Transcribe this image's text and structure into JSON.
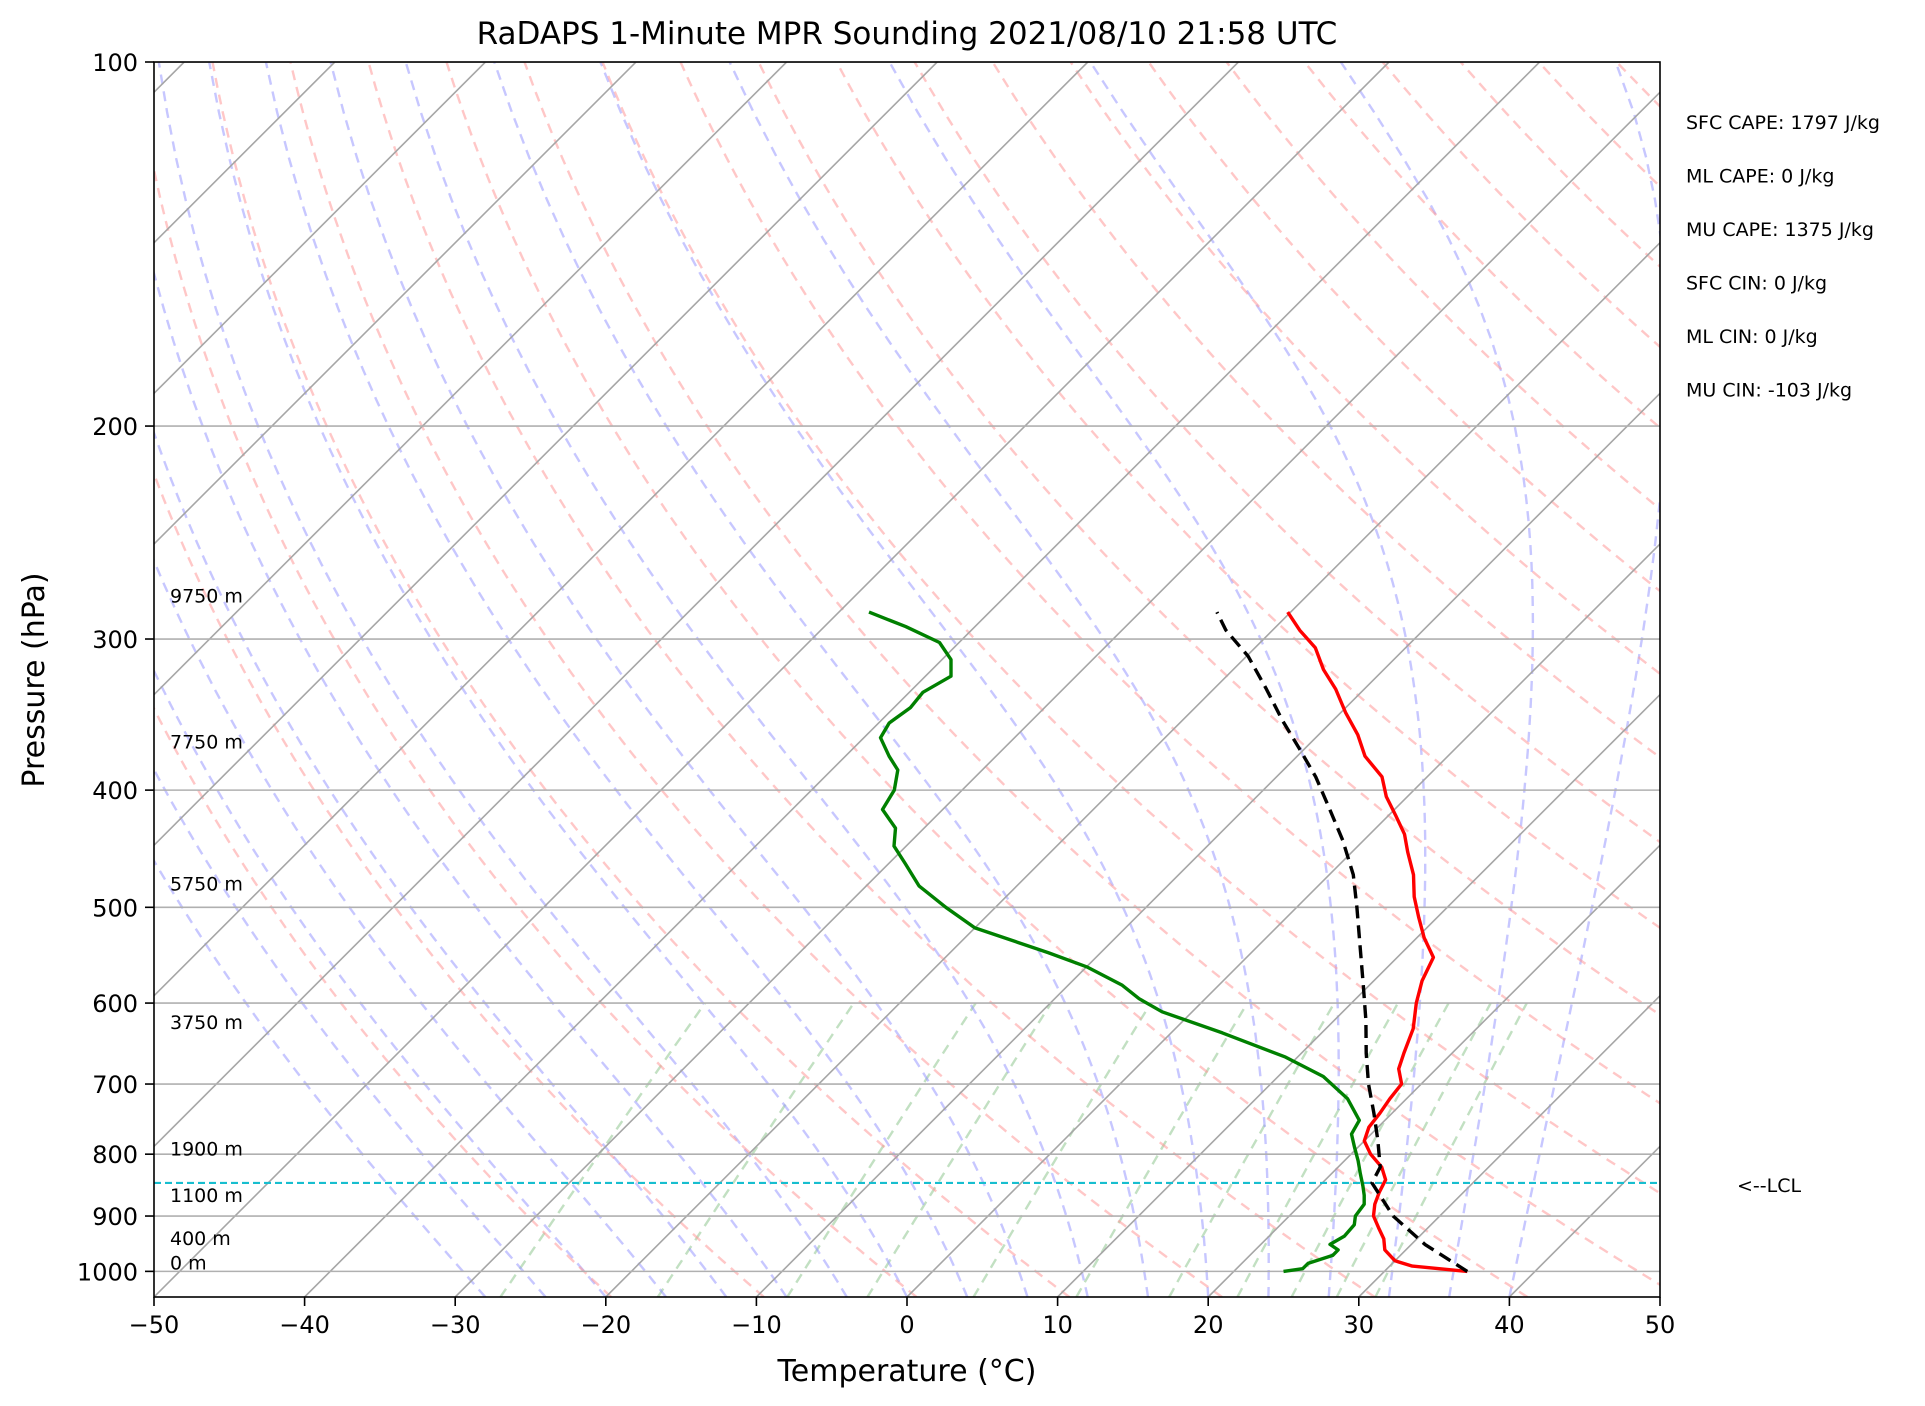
{
  "chart_data": {
    "type": "line",
    "subtype": "skew-T log-P sounding",
    "title": "RaDAPS 1-Minute MPR Sounding 2021/08/10 21:58 UTC",
    "xlabel": "Temperature (°C)",
    "ylabel": "Pressure (hPa)",
    "xlim": [
      -50,
      50
    ],
    "ylim": [
      1050,
      100
    ],
    "y_scale": "log",
    "grid": true,
    "x_ticks": [
      -50,
      -40,
      -30,
      -20,
      -10,
      0,
      10,
      20,
      30,
      40,
      50
    ],
    "x_tick_labels": [
      "−50",
      "−40",
      "−30",
      "−20",
      "−10",
      "0",
      "10",
      "20",
      "30",
      "40",
      "50"
    ],
    "y_ticks": [
      1000,
      900,
      800,
      700,
      600,
      500,
      400,
      300,
      200,
      100
    ],
    "y_tick_labels": [
      "1000",
      "900",
      "800",
      "700",
      "600",
      "500",
      "400",
      "300",
      "200",
      "100"
    ],
    "series": [
      {
        "role": "temperature",
        "color": "#ff0000",
        "style": "solid",
        "points": [
          [
            35.5,
            1000
          ],
          [
            31.5,
            990
          ],
          [
            30.0,
            980
          ],
          [
            28.6,
            960
          ],
          [
            27.8,
            940
          ],
          [
            26.7,
            920
          ],
          [
            25.6,
            900
          ],
          [
            24.9,
            880
          ],
          [
            24.4,
            860
          ],
          [
            24.0,
            840
          ],
          [
            22.9,
            820
          ],
          [
            21.3,
            800
          ],
          [
            20.0,
            780
          ],
          [
            19.4,
            760
          ],
          [
            19.2,
            740
          ],
          [
            18.9,
            720
          ],
          [
            18.7,
            700
          ],
          [
            17.5,
            680
          ],
          [
            16.8,
            660
          ],
          [
            15.8,
            630
          ],
          [
            14.3,
            600
          ],
          [
            13.2,
            575
          ],
          [
            12.4,
            550
          ],
          [
            10.5,
            530
          ],
          [
            8.8,
            510
          ],
          [
            7.1,
            490
          ],
          [
            5.6,
            470
          ],
          [
            3.7,
            450
          ],
          [
            2.3,
            435
          ],
          [
            0.5,
            420
          ],
          [
            -1.4,
            405
          ],
          [
            -3.0,
            390
          ],
          [
            -5.5,
            375
          ],
          [
            -7.4,
            360
          ],
          [
            -9.7,
            345
          ],
          [
            -11.9,
            330
          ],
          [
            -14.0,
            318
          ],
          [
            -16.0,
            305
          ],
          [
            -18.2,
            295
          ],
          [
            -20.2,
            285
          ]
        ]
      },
      {
        "role": "dewpoint",
        "color": "#008000",
        "style": "solid",
        "points": [
          [
            23.3,
            1000
          ],
          [
            24.4,
            995
          ],
          [
            24.4,
            985
          ],
          [
            25.5,
            970
          ],
          [
            25.5,
            960
          ],
          [
            24.6,
            950
          ],
          [
            25.0,
            935
          ],
          [
            24.9,
            915
          ],
          [
            24.4,
            900
          ],
          [
            24.2,
            880
          ],
          [
            23.6,
            865
          ],
          [
            22.9,
            850
          ],
          [
            21.9,
            830
          ],
          [
            20.9,
            810
          ],
          [
            19.8,
            790
          ],
          [
            18.7,
            770
          ],
          [
            18.3,
            750
          ],
          [
            16.1,
            720
          ],
          [
            13.0,
            690
          ],
          [
            9.2,
            665
          ],
          [
            3.4,
            635
          ],
          [
            -2.0,
            610
          ],
          [
            -4.4,
            595
          ],
          [
            -6.4,
            580
          ],
          [
            -10.0,
            560
          ],
          [
            -13.5,
            545
          ],
          [
            -20.0,
            520
          ],
          [
            -23.3,
            500
          ],
          [
            -26.5,
            480
          ],
          [
            -28.9,
            460
          ],
          [
            -30.8,
            445
          ],
          [
            -31.9,
            430
          ],
          [
            -34.0,
            415
          ],
          [
            -34.5,
            400
          ],
          [
            -35.6,
            385
          ],
          [
            -37.1,
            375
          ],
          [
            -38.9,
            362
          ],
          [
            -39.3,
            352
          ],
          [
            -38.9,
            342
          ],
          [
            -39.1,
            332
          ],
          [
            -38.3,
            322
          ],
          [
            -39.4,
            312
          ],
          [
            -41.3,
            302
          ],
          [
            -44.6,
            293
          ],
          [
            -48.0,
            285
          ]
        ]
      },
      {
        "role": "parcel",
        "color": "#000000",
        "style": "dashed",
        "points": [
          [
            35.5,
            1000
          ],
          [
            30.9,
            950
          ],
          [
            26.9,
            900
          ],
          [
            23.3,
            845
          ],
          [
            22.8,
            820
          ],
          [
            20.9,
            780
          ],
          [
            18.8,
            740
          ],
          [
            16.5,
            700
          ],
          [
            14.3,
            660
          ],
          [
            12.1,
            620
          ],
          [
            9.6,
            580
          ],
          [
            6.9,
            540
          ],
          [
            4.0,
            500
          ],
          [
            1.6,
            470
          ],
          [
            -1.4,
            440
          ],
          [
            -4.3,
            415
          ],
          [
            -7.4,
            390
          ],
          [
            -10.3,
            370
          ],
          [
            -13.4,
            350
          ],
          [
            -16.5,
            330
          ],
          [
            -19.9,
            310
          ],
          [
            -23.1,
            295
          ],
          [
            -24.9,
            285
          ]
        ]
      }
    ],
    "lcl_pressure": 845,
    "lcl_label": "<--LCL",
    "lcl_line_color": "#17becf",
    "height_labels": [
      {
        "text": "0 m",
        "p": 1000
      },
      {
        "text": "400 m",
        "p": 955
      },
      {
        "text": "1100 m",
        "p": 880
      },
      {
        "text": "1900 m",
        "p": 805
      },
      {
        "text": "3750 m",
        "p": 633
      },
      {
        "text": "5750 m",
        "p": 486
      },
      {
        "text": "7750 m",
        "p": 371
      },
      {
        "text": "9750 m",
        "p": 281
      }
    ],
    "stats": [
      "SFC CAPE: 1797 J/kg",
      "ML CAPE: 0 J/kg",
      "MU CAPE: 1375 J/kg",
      "SFC CIN: 0 J/kg",
      "ML CIN: 0 J/kg",
      "MU CIN: -103 J/kg"
    ],
    "reference_line_colors": {
      "isotherms": "#a6a6a6",
      "dry_adiabats": "#ff9999",
      "moist_adiabats": "#9999ff",
      "mixing_ratio": "#99cc99"
    }
  }
}
